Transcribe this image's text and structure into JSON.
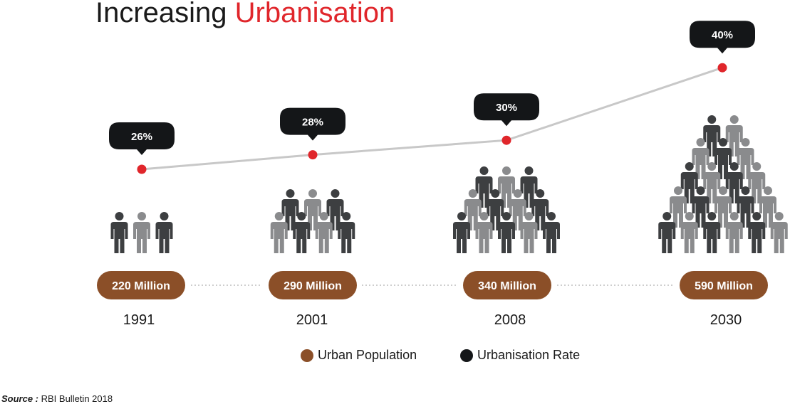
{
  "title": {
    "main": "Increasing ",
    "accent": "Urbanisation"
  },
  "colors": {
    "accent": "#e0262b",
    "population_pill": "#8b4f28",
    "rate_bubble": "#141618",
    "line": "#c8c8c8",
    "person_dark": "#3d3f41",
    "person_light": "#8a8b8d"
  },
  "chart_data": {
    "type": "line",
    "x": [
      "1991",
      "2001",
      "2008",
      "2030"
    ],
    "series": [
      {
        "name": "Urbanisation Rate",
        "values": [
          26,
          28,
          30,
          40
        ],
        "labels": [
          "26%",
          "28%",
          "30%",
          "40%"
        ]
      },
      {
        "name": "Urban Population",
        "values": [
          220,
          290,
          340,
          590
        ],
        "labels": [
          "220 Million",
          "290 Million",
          "340 Million",
          "590 Million"
        ]
      }
    ]
  },
  "legend": [
    {
      "label": "Urban Population",
      "color": "#8b4f28"
    },
    {
      "label": "Urbanisation Rate",
      "color": "#141618"
    }
  ],
  "source": {
    "label": "Source :",
    "text": " RBI Bulletin 2018"
  }
}
